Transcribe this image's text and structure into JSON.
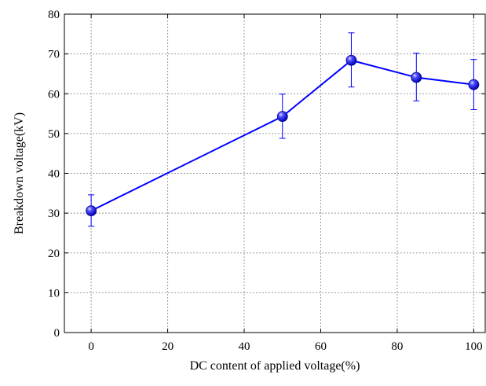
{
  "chart_data": {
    "type": "line",
    "title": "",
    "xlabel": "DC content of applied voltage(%)",
    "ylabel": "Breakdown voltage(kV)",
    "xlim": [
      -7,
      103
    ],
    "ylim": [
      0,
      80
    ],
    "xticks": [
      0,
      20,
      40,
      60,
      80,
      100
    ],
    "yticks": [
      0,
      10,
      20,
      30,
      40,
      50,
      60,
      70,
      80
    ],
    "grid": true,
    "grid_style": "dotted",
    "legend": "none",
    "series": [
      {
        "color": "#0000ff",
        "marker": "sphere",
        "points": [
          {
            "x": 0,
            "y": 30.6,
            "err_low": 26.7,
            "err_high": 34.6
          },
          {
            "x": 50,
            "y": 54.3,
            "err_low": 48.8,
            "err_high": 59.9
          },
          {
            "x": 68,
            "y": 68.4,
            "err_low": 61.7,
            "err_high": 75.3
          },
          {
            "x": 85,
            "y": 64.1,
            "err_low": 58.2,
            "err_high": 70.2
          },
          {
            "x": 100,
            "y": 62.3,
            "err_low": 56.0,
            "err_high": 68.6
          }
        ]
      }
    ]
  }
}
